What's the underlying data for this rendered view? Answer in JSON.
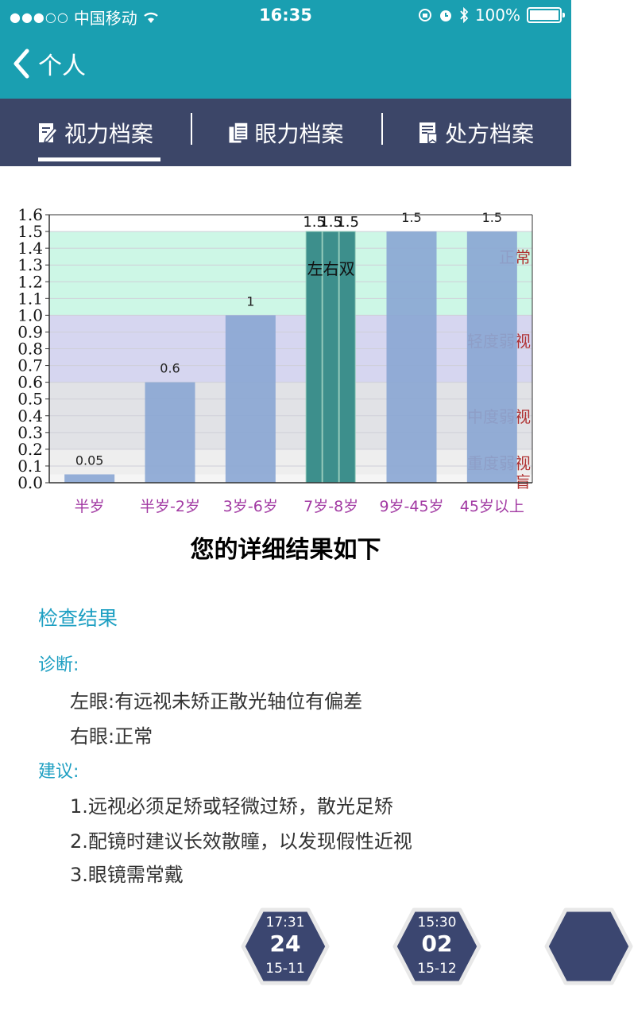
{
  "status": {
    "signal": "●●●○○",
    "carrier": "中国移动",
    "time": "16:35",
    "battery": "100%"
  },
  "nav": {
    "back_label": "个人"
  },
  "tabs": [
    {
      "label": "视力档案",
      "icon": "edit-doc-icon"
    },
    {
      "label": "眼力档案",
      "icon": "copy-doc-icon"
    },
    {
      "label": "处方档案",
      "icon": "bookmark-doc-icon"
    }
  ],
  "chart_data": {
    "type": "bar",
    "categories": [
      "半岁",
      "半岁-2岁",
      "3岁-6岁",
      "7岁-8岁",
      "9岁-45岁",
      "45岁以上"
    ],
    "values": [
      0.05,
      0.6,
      1,
      1.5,
      1.5,
      1.5
    ],
    "value_labels": [
      "0.05",
      "0.6",
      "1",
      "1.5",
      "1.5",
      "1.5"
    ],
    "highlight": {
      "category": "7岁-8岁",
      "sub_bars": [
        1.5,
        1.5,
        1.5
      ],
      "sub_labels": [
        "1.5",
        "1.5",
        "1.5"
      ],
      "annotation": "左右双"
    },
    "ylim": [
      0,
      1.6
    ],
    "yticks": [
      "0.0",
      "0.1",
      "0.2",
      "0.3",
      "0.4",
      "0.5",
      "0.6",
      "0.7",
      "0.8",
      "0.9",
      "1.0",
      "1.1",
      "1.2",
      "1.3",
      "1.4",
      "1.5",
      "1.6"
    ],
    "bands": [
      {
        "label": "正常",
        "from": 1.0,
        "to": 1.5,
        "color": "#cdf7e6"
      },
      {
        "label": "轻度弱视",
        "from": 0.6,
        "to": 1.0,
        "color": "#d6d6f0"
      },
      {
        "label": "中度弱视",
        "from": 0.2,
        "to": 0.6,
        "color": "#e1e2e6"
      },
      {
        "label": "重度弱视",
        "from": 0.05,
        "to": 0.2,
        "color": "#eeeeee"
      },
      {
        "label": "盲",
        "from": 0.0,
        "to": 0.05,
        "color": "#f5f5f5"
      }
    ],
    "colors": {
      "bar": "#8ba7d4",
      "highlight": "#3d8f8c",
      "band_label": "#b03232",
      "category_label": "#a23aa3"
    },
    "grid": true
  },
  "result_title": "您的详细结果如下",
  "results": {
    "heading": "检查结果",
    "diagnosis_label": "诊断:",
    "diagnosis": [
      "左眼:有远视未矫正散光轴位有偏差",
      "右眼:正常"
    ],
    "advice_label": "建议:",
    "advice": [
      "1.远视必须足矫或轻微过矫，散光足矫",
      "2.配镜时建议长效散瞳，以发现假性近视",
      "3.眼镜需常戴"
    ]
  },
  "badges": [
    {
      "time": "17:31",
      "day": "24",
      "ym": "15-11"
    },
    {
      "time": "15:30",
      "day": "02",
      "ym": "15-12"
    }
  ]
}
